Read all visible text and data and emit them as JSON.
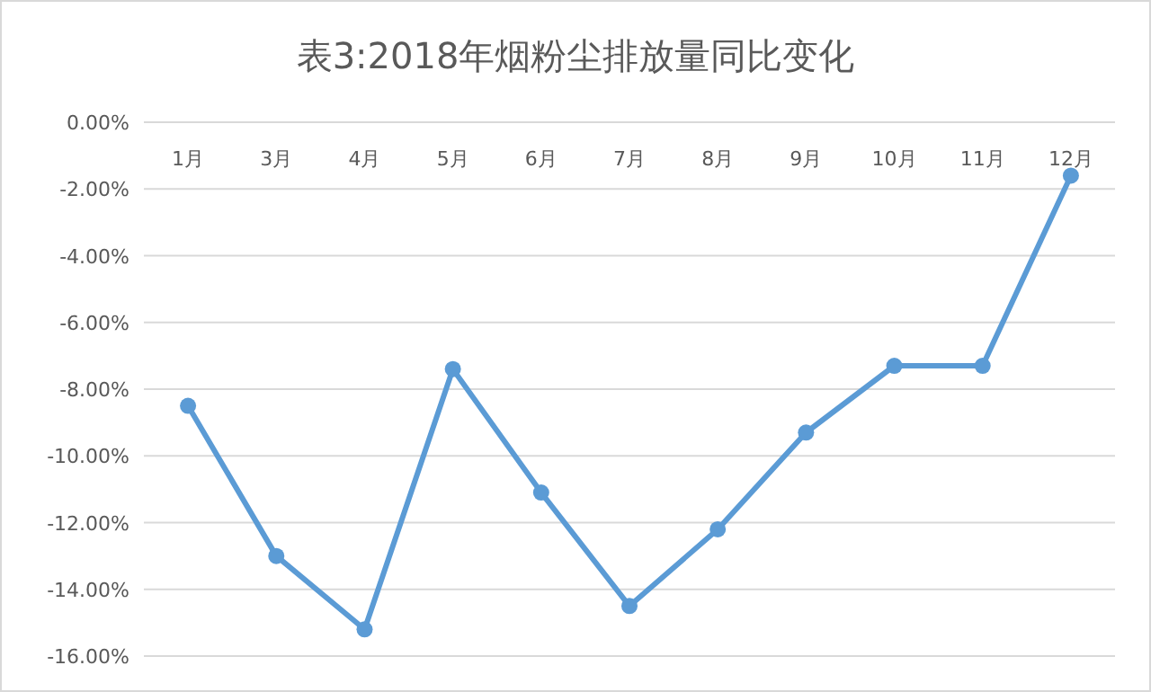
{
  "chart_data": {
    "type": "line",
    "title": "表3:2018年烟粉尘排放量同比变化",
    "categories": [
      "1月",
      "3月",
      "4月",
      "5月",
      "6月",
      "7月",
      "8月",
      "9月",
      "10月",
      "11月",
      "12月"
    ],
    "series": [
      {
        "color": "#5b9bd5",
        "values": [
          -8.5,
          -13.0,
          -15.2,
          -7.4,
          -11.1,
          -14.5,
          -12.2,
          -9.3,
          -7.3,
          -7.3,
          -1.6
        ]
      }
    ],
    "ylim": [
      -16,
      0
    ],
    "yticks": [
      {
        "value": 0,
        "label": "0.00%"
      },
      {
        "value": -2,
        "label": "-2.00%"
      },
      {
        "value": -4,
        "label": "-4.00%"
      },
      {
        "value": -6,
        "label": "-6.00%"
      },
      {
        "value": -8,
        "label": "-8.00%"
      },
      {
        "value": -10,
        "label": "-10.00%"
      },
      {
        "value": -12,
        "label": "-12.00%"
      },
      {
        "value": -14,
        "label": "-14.00%"
      },
      {
        "value": -16,
        "label": "-16.00%"
      }
    ],
    "grid": "y",
    "marker": "circle",
    "line_style": "solid"
  }
}
